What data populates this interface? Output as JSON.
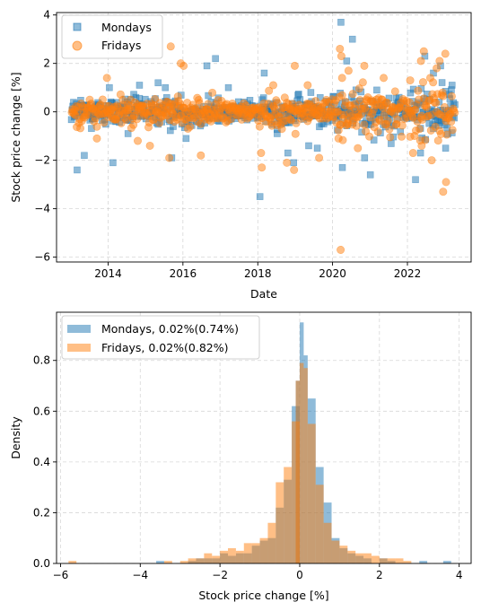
{
  "chart_data": [
    {
      "type": "scatter",
      "xlabel": "Date",
      "ylabel": "Stock price change [%]",
      "xlim": [
        "2012-08-15",
        "2023-09-15"
      ],
      "ylim": [
        -6.2,
        4.1
      ],
      "x_ticks": [
        "2014",
        "2016",
        "2018",
        "2020",
        "2022"
      ],
      "y_ticks": [
        "−6",
        "−4",
        "−2",
        "0",
        "2",
        "4"
      ],
      "grid": true,
      "legend_position": "top-left",
      "series": [
        {
          "name": "Mondays",
          "marker": "square",
          "color": "#1f77b4",
          "points": [
            [
              "2013-03-04",
              -2.4
            ],
            [
              "2013-05-13",
              -1.8
            ],
            [
              "2014-02-17",
              -2.1
            ],
            [
              "2014-01-13",
              1.0
            ],
            [
              "2014-07-14",
              -0.9
            ],
            [
              "2014-11-03",
              1.1
            ],
            [
              "2015-05-04",
              1.2
            ],
            [
              "2015-09-14",
              -1.9
            ],
            [
              "2015-07-13",
              1.0
            ],
            [
              "2016-02-01",
              -1.1
            ],
            [
              "2016-08-22",
              1.9
            ],
            [
              "2016-11-14",
              2.2
            ],
            [
              "2017-03-20",
              1.0
            ],
            [
              "2018-01-22",
              -3.5
            ],
            [
              "2018-03-05",
              1.6
            ],
            [
              "2018-07-09",
              -0.9
            ],
            [
              "2018-10-22",
              -1.7
            ],
            [
              "2018-12-17",
              -2.1
            ],
            [
              "2019-05-13",
              -1.4
            ],
            [
              "2019-08-05",
              -1.5
            ],
            [
              "2019-06-03",
              0.8
            ],
            [
              "2020-03-23",
              3.7
            ],
            [
              "2020-05-18",
              2.1
            ],
            [
              "2020-07-13",
              3.0
            ],
            [
              "2020-04-06",
              -2.3
            ],
            [
              "2020-11-09",
              -1.9
            ],
            [
              "2021-01-04",
              -2.6
            ],
            [
              "2021-03-08",
              0.9
            ],
            [
              "2022-03-21",
              -2.8
            ],
            [
              "2022-05-09",
              -1.7
            ],
            [
              "2022-06-20",
              2.3
            ],
            [
              "2022-09-12",
              1.6
            ],
            [
              "2022-11-21",
              1.9
            ],
            [
              "2023-01-09",
              -1.5
            ],
            [
              "2023-03-13",
              1.1
            ],
            [
              "2023-04-10",
              0.3
            ]
          ]
        },
        {
          "name": "Fridays",
          "marker": "circle",
          "color": "#ff7f0e",
          "points": [
            [
              "2013-09-13",
              -1.1
            ],
            [
              "2013-12-20",
              1.4
            ],
            [
              "2014-10-17",
              -1.2
            ],
            [
              "2015-02-13",
              -1.4
            ],
            [
              "2015-08-21",
              -1.9
            ],
            [
              "2015-09-04",
              2.7
            ],
            [
              "2015-12-11",
              2.0
            ],
            [
              "2016-01-08",
              1.9
            ],
            [
              "2016-06-24",
              -1.8
            ],
            [
              "2018-02-02",
              -1.7
            ],
            [
              "2018-02-09",
              -2.3
            ],
            [
              "2018-06-01",
              1.1
            ],
            [
              "2018-10-12",
              -2.1
            ],
            [
              "2018-12-21",
              -2.4
            ],
            [
              "2018-12-28",
              1.9
            ],
            [
              "2019-05-03",
              1.1
            ],
            [
              "2019-08-23",
              -1.9
            ],
            [
              "2020-02-28",
              -1.1
            ],
            [
              "2020-03-13",
              2.6
            ],
            [
              "2020-03-20",
              -5.7
            ],
            [
              "2020-03-27",
              2.3
            ],
            [
              "2020-04-03",
              1.4
            ],
            [
              "2020-06-05",
              1.7
            ],
            [
              "2020-09-04",
              -1.5
            ],
            [
              "2020-11-06",
              1.9
            ],
            [
              "2021-05-14",
              1.4
            ],
            [
              "2022-01-28",
              1.3
            ],
            [
              "2022-02-25",
              -1.7
            ],
            [
              "2022-05-13",
              2.1
            ],
            [
              "2022-05-20",
              -1.4
            ],
            [
              "2022-06-10",
              2.5
            ],
            [
              "2022-08-26",
              -2.0
            ],
            [
              "2022-10-14",
              1.8
            ],
            [
              "2022-11-11",
              2.1
            ],
            [
              "2022-12-16",
              -3.3
            ],
            [
              "2023-01-06",
              2.4
            ],
            [
              "2023-01-13",
              -2.9
            ]
          ]
        }
      ]
    },
    {
      "type": "histogram",
      "xlabel": "Stock price change [%]",
      "ylabel": "Density",
      "xlim": [
        -6.1,
        4.3
      ],
      "ylim": [
        0,
        0.99
      ],
      "x_ticks": [
        "−6",
        "−4",
        "−2",
        "0",
        "2",
        "4"
      ],
      "y_ticks": [
        "0.0",
        "0.2",
        "0.4",
        "0.6",
        "0.8"
      ],
      "grid": true,
      "legend_position": "top-left",
      "bin_width": 0.2,
      "series": [
        {
          "name": "Mondays, 0.02%(0.74%)",
          "color": "#1f77b4",
          "bins": [
            [
              -3.6,
              0.01
            ],
            [
              -2.8,
              0.01
            ],
            [
              -2.6,
              0.02
            ],
            [
              -2.4,
              0.02
            ],
            [
              -2.2,
              0.02
            ],
            [
              -2.0,
              0.04
            ],
            [
              -1.8,
              0.03
            ],
            [
              -1.6,
              0.04
            ],
            [
              -1.4,
              0.04
            ],
            [
              -1.2,
              0.07
            ],
            [
              -1.0,
              0.09
            ],
            [
              -0.8,
              0.1
            ],
            [
              -0.6,
              0.22
            ],
            [
              -0.4,
              0.33
            ],
            [
              -0.2,
              0.62
            ],
            [
              -0.1,
              0.72
            ],
            [
              0.0,
              0.95
            ],
            [
              0.1,
              0.82
            ],
            [
              0.2,
              0.65
            ],
            [
              0.4,
              0.38
            ],
            [
              0.6,
              0.24
            ],
            [
              0.8,
              0.1
            ],
            [
              1.0,
              0.06
            ],
            [
              1.2,
              0.04
            ],
            [
              1.4,
              0.03
            ],
            [
              1.6,
              0.02
            ],
            [
              2.0,
              0.02
            ],
            [
              2.2,
              0.01
            ],
            [
              3.0,
              0.01
            ],
            [
              3.6,
              0.01
            ]
          ]
        },
        {
          "name": "Fridays, 0.02%(0.82%)",
          "color": "#ff7f0e",
          "bins": [
            [
              -5.8,
              0.01
            ],
            [
              -3.4,
              0.01
            ],
            [
              -3.0,
              0.01
            ],
            [
              -2.8,
              0.02
            ],
            [
              -2.6,
              0.02
            ],
            [
              -2.4,
              0.04
            ],
            [
              -2.2,
              0.03
            ],
            [
              -2.0,
              0.05
            ],
            [
              -1.8,
              0.06
            ],
            [
              -1.6,
              0.05
            ],
            [
              -1.4,
              0.08
            ],
            [
              -1.2,
              0.08
            ],
            [
              -1.0,
              0.1
            ],
            [
              -0.8,
              0.16
            ],
            [
              -0.6,
              0.32
            ],
            [
              -0.4,
              0.38
            ],
            [
              -0.2,
              0.56
            ],
            [
              -0.1,
              0.72
            ],
            [
              0.0,
              0.79
            ],
            [
              0.1,
              0.77
            ],
            [
              0.2,
              0.55
            ],
            [
              0.4,
              0.31
            ],
            [
              0.6,
              0.16
            ],
            [
              0.8,
              0.09
            ],
            [
              1.0,
              0.07
            ],
            [
              1.2,
              0.05
            ],
            [
              1.4,
              0.04
            ],
            [
              1.6,
              0.04
            ],
            [
              1.8,
              0.03
            ],
            [
              2.0,
              0.02
            ],
            [
              2.2,
              0.02
            ],
            [
              2.4,
              0.02
            ],
            [
              2.6,
              0.01
            ]
          ]
        }
      ]
    }
  ]
}
